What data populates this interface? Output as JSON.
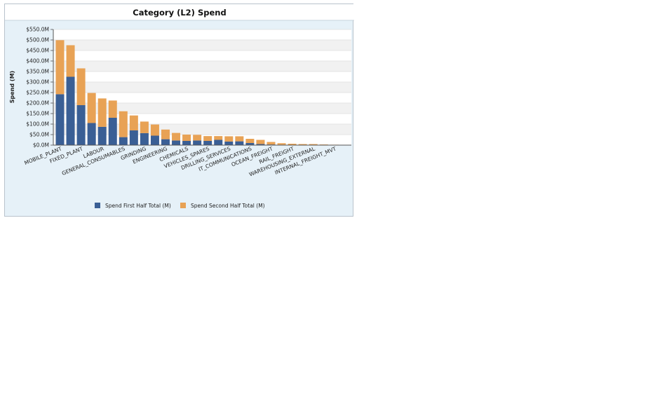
{
  "chart_data": {
    "type": "bar",
    "stacked": true,
    "title": "Category (L2) Spend",
    "xlabel": "",
    "ylabel": "Spend (M)",
    "ylim": [
      0,
      550
    ],
    "y_ticks": [
      0,
      50,
      100,
      150,
      200,
      250,
      300,
      350,
      400,
      450,
      500,
      550
    ],
    "y_tick_labels": [
      "$0.0M",
      "$50.0M",
      "$100.0M",
      "$150.0M",
      "$200.0M",
      "$250.0M",
      "$300.0M",
      "$350.0M",
      "$400.0M",
      "$450.0M",
      "$500.0M",
      "$550.0M"
    ],
    "legend_position": "bottom",
    "categories": [
      "MOBILE_PLANT",
      "FIXED_PLANT",
      "",
      "LABOUR",
      "",
      "GENERAL_CONSUMABLES",
      "GRINDING",
      "",
      "ENGINEERING",
      "",
      "CHEMICALS",
      "",
      "VEHICLES_SPARES",
      "",
      "DRILLING_SERVICES",
      "",
      "IT_COMMUNICATIONS",
      "",
      "OCEAN_FREIGHT",
      "",
      "RAIL_FREIGHT",
      "",
      "WAREHOUSING_EXTERNAL",
      "",
      "",
      "INTERNAL_FREIGHT_MVT",
      ""
    ],
    "x_tick_labels": [
      "MOBILE_PLANT",
      "FIXED_PLANT",
      "LABOUR",
      "GENERAL_CONSUMABLES",
      "GRINDING",
      "ENGINEERING",
      "CHEMICALS",
      "VEHICLES_SPARES",
      "DRILLING_SERVICES",
      "IT_COMMUNICATIONS",
      "OCEAN_FREIGHT",
      "RAIL_FREIGHT",
      "WAREHOUSING_EXTERNAL",
      "INTERNAL_FREIGHT_MVT"
    ],
    "x_tick_label_indices": [
      0,
      2,
      4,
      6,
      8,
      10,
      12,
      14,
      16,
      18,
      20,
      22,
      24,
      26
    ],
    "series": [
      {
        "name": "Spend First Half Total (M)",
        "color": "#3a5f95",
        "values": [
          242,
          325,
          190,
          105,
          87,
          130,
          38,
          70,
          57,
          45,
          28,
          22,
          20,
          22,
          20,
          25,
          17,
          18,
          10,
          5,
          3,
          2,
          1.5,
          1,
          1,
          1,
          1
        ]
      },
      {
        "name": "Spend Second Half Total (M)",
        "color": "#e8a255",
        "values": [
          257,
          150,
          175,
          143,
          135,
          82,
          123,
          71,
          55,
          53,
          46,
          36,
          30,
          27,
          23,
          18,
          25,
          24,
          20,
          20,
          12,
          7,
          5,
          4,
          4,
          2,
          1
        ]
      }
    ]
  }
}
